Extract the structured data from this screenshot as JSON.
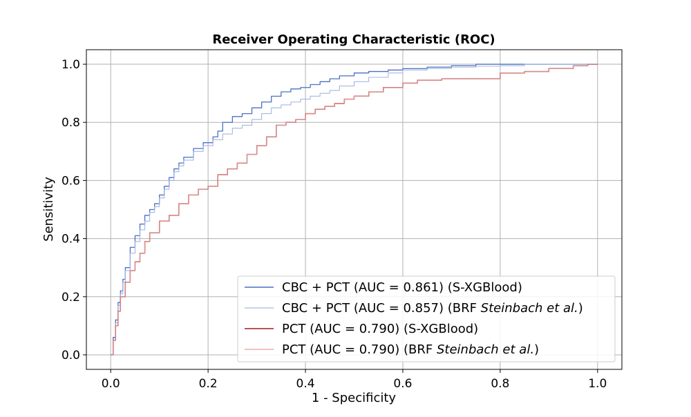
{
  "chart_data": {
    "type": "line",
    "title": "Receiver Operating Characteristic (ROC)",
    "xlabel": "1 - Specificity",
    "ylabel": "Sensitivity",
    "xlim": [
      -0.05,
      1.05
    ],
    "ylim": [
      -0.05,
      1.05
    ],
    "xticks": [
      0.0,
      0.2,
      0.4,
      0.6,
      0.8,
      1.0
    ],
    "yticks": [
      0.0,
      0.2,
      0.4,
      0.6,
      0.8,
      1.0
    ],
    "xtick_labels": [
      "0.0",
      "0.2",
      "0.4",
      "0.6",
      "0.8",
      "1.0"
    ],
    "ytick_labels": [
      "0.0",
      "0.2",
      "0.4",
      "0.6",
      "0.8",
      "1.0"
    ],
    "grid": true,
    "legend_position": "lower-right",
    "series": [
      {
        "name": "CBC + PCT (AUC = 0.861) (S-XGBlood)",
        "label_plain": "CBC + PCT (AUC = 0.861) (S-XGBlood)",
        "color": "#4a6fc4",
        "width": 1.3,
        "x": [
          0.0,
          0.005,
          0.01,
          0.015,
          0.02,
          0.025,
          0.03,
          0.04,
          0.05,
          0.06,
          0.07,
          0.08,
          0.09,
          0.1,
          0.11,
          0.12,
          0.13,
          0.14,
          0.15,
          0.17,
          0.19,
          0.21,
          0.22,
          0.23,
          0.25,
          0.27,
          0.29,
          0.31,
          0.33,
          0.35,
          0.37,
          0.39,
          0.41,
          0.43,
          0.45,
          0.47,
          0.5,
          0.53,
          0.57,
          0.6,
          0.65,
          0.7,
          0.75,
          0.8,
          0.85,
          0.9,
          0.95,
          1.0
        ],
        "y": [
          0.0,
          0.06,
          0.12,
          0.18,
          0.22,
          0.26,
          0.3,
          0.37,
          0.41,
          0.45,
          0.48,
          0.5,
          0.52,
          0.55,
          0.58,
          0.61,
          0.64,
          0.66,
          0.68,
          0.71,
          0.73,
          0.75,
          0.77,
          0.8,
          0.82,
          0.83,
          0.85,
          0.87,
          0.89,
          0.905,
          0.915,
          0.92,
          0.93,
          0.94,
          0.95,
          0.96,
          0.97,
          0.975,
          0.98,
          0.985,
          0.99,
          0.995,
          1.0,
          1.0,
          1.0,
          1.0,
          1.0,
          1.0
        ]
      },
      {
        "name": "CBC + PCT (AUC = 0.857) (BRF ",
        "name_italic": "Steinbach et al.",
        "name_suffix": ")",
        "label_plain": "CBC + PCT (AUC = 0.857) (BRF Steinbach et al.)",
        "color": "#a3b6e2",
        "width": 1.1,
        "x": [
          0.0,
          0.005,
          0.01,
          0.015,
          0.02,
          0.025,
          0.03,
          0.04,
          0.05,
          0.06,
          0.07,
          0.08,
          0.09,
          0.1,
          0.11,
          0.12,
          0.13,
          0.14,
          0.15,
          0.17,
          0.19,
          0.21,
          0.23,
          0.25,
          0.27,
          0.29,
          0.31,
          0.33,
          0.35,
          0.37,
          0.39,
          0.41,
          0.43,
          0.45,
          0.47,
          0.5,
          0.53,
          0.57,
          0.6,
          0.65,
          0.7,
          0.75,
          0.8,
          0.85,
          0.9,
          0.95,
          1.0
        ],
        "y": [
          0.0,
          0.05,
          0.11,
          0.17,
          0.21,
          0.25,
          0.29,
          0.35,
          0.39,
          0.43,
          0.46,
          0.49,
          0.51,
          0.54,
          0.57,
          0.6,
          0.63,
          0.65,
          0.67,
          0.7,
          0.72,
          0.74,
          0.76,
          0.78,
          0.79,
          0.81,
          0.83,
          0.85,
          0.86,
          0.87,
          0.88,
          0.89,
          0.9,
          0.91,
          0.925,
          0.94,
          0.955,
          0.97,
          0.98,
          0.985,
          0.99,
          0.993,
          0.995,
          1.0,
          1.0,
          1.0,
          1.0
        ]
      },
      {
        "name": "PCT (AUC = 0.790) (S-XGBlood)",
        "label_plain": "PCT (AUC = 0.790) (S-XGBlood)",
        "color": "#9b1c1c",
        "width": 1.4,
        "x": [
          0.0,
          0.005,
          0.01,
          0.015,
          0.02,
          0.03,
          0.04,
          0.05,
          0.06,
          0.07,
          0.08,
          0.1,
          0.12,
          0.14,
          0.16,
          0.18,
          0.2,
          0.22,
          0.24,
          0.26,
          0.28,
          0.3,
          0.32,
          0.34,
          0.36,
          0.38,
          0.4,
          0.42,
          0.44,
          0.46,
          0.48,
          0.5,
          0.53,
          0.56,
          0.6,
          0.63,
          0.68,
          0.74,
          0.8,
          0.85,
          0.9,
          0.95,
          0.98,
          1.0
        ],
        "y": [
          0.0,
          0.05,
          0.1,
          0.15,
          0.2,
          0.25,
          0.29,
          0.32,
          0.35,
          0.39,
          0.42,
          0.46,
          0.48,
          0.52,
          0.55,
          0.57,
          0.58,
          0.62,
          0.64,
          0.66,
          0.69,
          0.72,
          0.75,
          0.79,
          0.8,
          0.81,
          0.83,
          0.845,
          0.855,
          0.865,
          0.88,
          0.89,
          0.905,
          0.92,
          0.935,
          0.945,
          0.95,
          0.95,
          0.97,
          0.975,
          0.985,
          0.995,
          1.0,
          1.0
        ]
      },
      {
        "name": "PCT (AUC = 0.790) (BRF ",
        "name_italic": "Steinbach et al.",
        "name_suffix": ")",
        "label_plain": "PCT (AUC = 0.790) (BRF Steinbach et al.)",
        "color": "#e69a9a",
        "width": 1.0,
        "x": [
          0.0,
          0.005,
          0.01,
          0.015,
          0.02,
          0.03,
          0.04,
          0.05,
          0.06,
          0.07,
          0.08,
          0.1,
          0.12,
          0.14,
          0.16,
          0.18,
          0.2,
          0.22,
          0.24,
          0.26,
          0.28,
          0.3,
          0.32,
          0.34,
          0.36,
          0.38,
          0.4,
          0.42,
          0.44,
          0.46,
          0.48,
          0.5,
          0.53,
          0.56,
          0.6,
          0.63,
          0.68,
          0.74,
          0.8,
          0.85,
          0.9,
          0.95,
          0.98,
          1.0
        ],
        "y": [
          0.0,
          0.05,
          0.1,
          0.15,
          0.2,
          0.25,
          0.29,
          0.32,
          0.35,
          0.39,
          0.42,
          0.46,
          0.48,
          0.52,
          0.55,
          0.57,
          0.58,
          0.62,
          0.64,
          0.66,
          0.69,
          0.72,
          0.75,
          0.79,
          0.8,
          0.81,
          0.83,
          0.845,
          0.855,
          0.865,
          0.88,
          0.89,
          0.905,
          0.92,
          0.935,
          0.945,
          0.95,
          0.95,
          0.97,
          0.975,
          0.985,
          0.995,
          1.0,
          1.0
        ]
      }
    ]
  }
}
